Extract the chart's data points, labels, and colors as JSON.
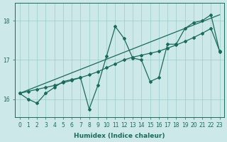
{
  "xlabel": "Humidex (Indice chaleur)",
  "bg_color": "#cce8e8",
  "line_color": "#1a6b5a",
  "grid_color": "#99cccc",
  "xlim": [
    -0.5,
    23.5
  ],
  "ylim": [
    15.55,
    18.45
  ],
  "yticks": [
    16,
    17,
    18
  ],
  "xticks": [
    0,
    1,
    2,
    3,
    4,
    5,
    6,
    7,
    8,
    9,
    10,
    11,
    12,
    13,
    14,
    15,
    16,
    17,
    18,
    19,
    20,
    21,
    22,
    23
  ],
  "series1_x": [
    0,
    1,
    2,
    3,
    4,
    5,
    6,
    7,
    8,
    9,
    10,
    11,
    12,
    13,
    14,
    15,
    16,
    17,
    18,
    19,
    20,
    21,
    22,
    23
  ],
  "series1_y": [
    16.15,
    16.0,
    15.9,
    16.15,
    16.3,
    16.45,
    16.5,
    16.55,
    15.75,
    16.35,
    17.1,
    17.85,
    17.55,
    17.05,
    17.0,
    16.45,
    16.55,
    17.4,
    17.4,
    17.8,
    17.95,
    18.0,
    18.15,
    17.2
  ],
  "series2_x": [
    0,
    1,
    2,
    3,
    4,
    5,
    6,
    7,
    8,
    9,
    10,
    11,
    12,
    13,
    14,
    15,
    16,
    17,
    18,
    19,
    20,
    21,
    22,
    23
  ],
  "series2_y": [
    16.15,
    16.2,
    16.25,
    16.3,
    16.35,
    16.42,
    16.48,
    16.55,
    16.62,
    16.7,
    16.8,
    16.9,
    17.0,
    17.07,
    17.12,
    17.17,
    17.22,
    17.3,
    17.38,
    17.47,
    17.57,
    17.68,
    17.8,
    17.22
  ],
  "series3_x": [
    0,
    23
  ],
  "series3_y": [
    16.15,
    18.15
  ],
  "marker": "D",
  "markersize": 2.0,
  "linewidth": 0.9
}
